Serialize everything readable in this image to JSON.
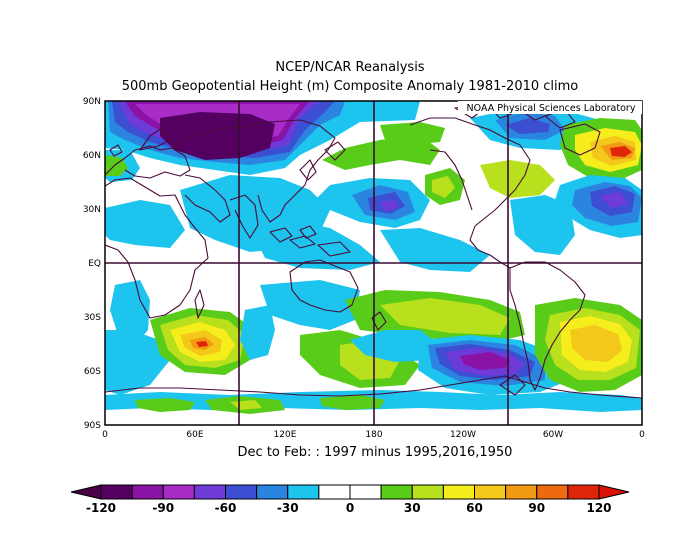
{
  "header": {
    "title_line1": "NCEP/NCAR Reanalysis",
    "title_line2": "500mb Geopotential Height (m) Composite Anomaly 1981-2010 climo"
  },
  "map": {
    "credit": "NOAA Physical Sciences Laboratory",
    "lat_labels": [
      "90N",
      "60N",
      "30N",
      "EQ",
      "30S",
      "60S",
      "90S"
    ],
    "lon_labels": [
      "0",
      "60E",
      "120E",
      "180",
      "120W",
      "60W",
      "0"
    ],
    "subtitle": "Dec to Feb: : 1997 minus 1995,2016,1950"
  },
  "colorbar": {
    "colors": [
      "#540060",
      "#8a12a4",
      "#a82cc8",
      "#6e3ad8",
      "#3c4ed2",
      "#2a84e0",
      "#1cc4ee",
      "#ffffff",
      "#ffffff",
      "#58cc18",
      "#b8e01c",
      "#f6ee1c",
      "#f4c81a",
      "#f29a14",
      "#ee6a0e",
      "#e0260a"
    ],
    "under_color": "#4a0046",
    "over_color": "#d81204",
    "labels": [
      "-120",
      "-90",
      "-60",
      "-30",
      "0",
      "30",
      "60",
      "90",
      "120"
    ],
    "label_positions": [
      0,
      2,
      4,
      6,
      8,
      10,
      12,
      14,
      16
    ]
  },
  "palette": {
    "coast": "#4a0a3a",
    "grid": "#3a0a30"
  }
}
